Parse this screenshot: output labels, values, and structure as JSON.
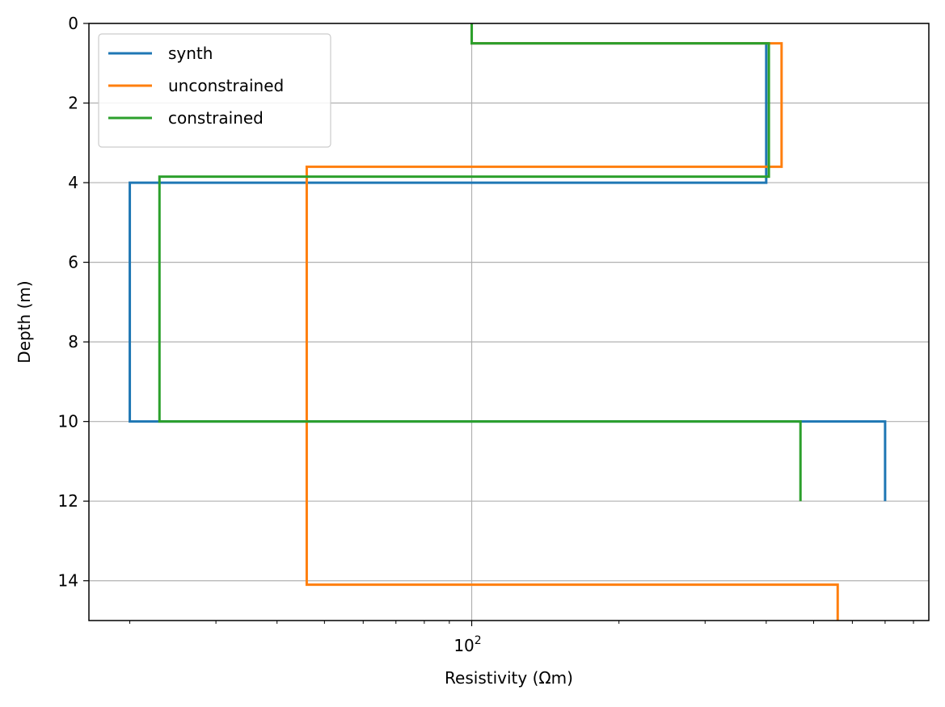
{
  "chart_data": {
    "type": "line",
    "title": "",
    "xlabel": "Resistivity (Ωm)",
    "ylabel": "Depth (m)",
    "x_scale": "log",
    "xlim": [
      16.5,
      860
    ],
    "ylim": [
      15,
      0
    ],
    "y_inverted": true,
    "grid": true,
    "legend_position": "top-left",
    "x_major_tick_labels": [
      {
        "value": 100,
        "base": "10",
        "exponent": "2"
      }
    ],
    "x_minor_ticks": [
      20,
      30,
      40,
      50,
      60,
      70,
      80,
      90,
      200,
      300,
      400,
      500,
      600,
      700,
      800
    ],
    "y_ticks": [
      0,
      2,
      4,
      6,
      8,
      10,
      12,
      14
    ],
    "y_tick_labels": [
      "0",
      "2",
      "4",
      "6",
      "8",
      "10",
      "12",
      "14"
    ],
    "series": [
      {
        "name": "synth",
        "color": "#1f77b4",
        "points": [
          [
            100,
            0
          ],
          [
            100,
            0.5
          ],
          [
            400,
            0.5
          ],
          [
            400,
            4
          ],
          [
            20,
            4
          ],
          [
            20,
            10
          ],
          [
            700,
            10
          ],
          [
            700,
            12
          ]
        ]
      },
      {
        "name": "unconstrained",
        "color": "#ff7f0e",
        "points": [
          [
            100,
            0
          ],
          [
            100,
            0.5
          ],
          [
            430,
            0.5
          ],
          [
            430,
            3.6
          ],
          [
            46,
            3.6
          ],
          [
            46,
            14.1
          ],
          [
            560,
            14.1
          ],
          [
            560,
            15
          ]
        ]
      },
      {
        "name": "constrained",
        "color": "#2ca02c",
        "points": [
          [
            100,
            0
          ],
          [
            100,
            0.5
          ],
          [
            405,
            0.5
          ],
          [
            405,
            3.85
          ],
          [
            23,
            3.85
          ],
          [
            23,
            10
          ],
          [
            470,
            10
          ],
          [
            470,
            12
          ]
        ]
      }
    ]
  }
}
